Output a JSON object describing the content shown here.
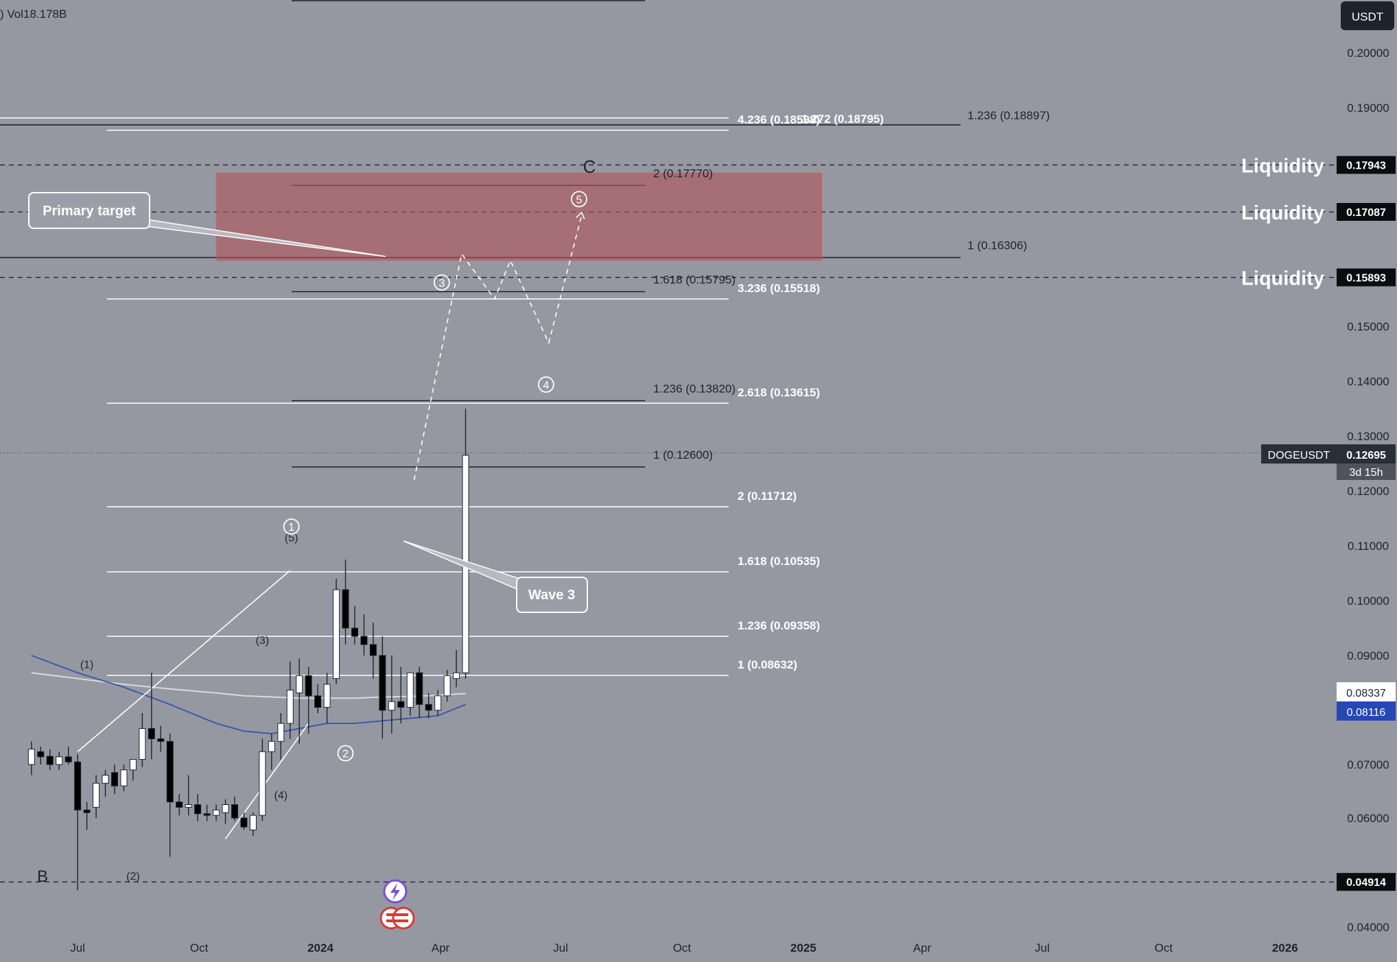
{
  "header": {
    "volume_text": ") Vol18.178B",
    "currency": "USDT"
  },
  "symbol": {
    "name": "DOGEUSDT",
    "price": "0.12695",
    "countdown": "3d 15h"
  },
  "price_tags": {
    "white": "0.08337",
    "blue": "0.08116"
  },
  "colors": {
    "background": "#9598a1",
    "zone": "#b0545b",
    "ma_blue": "#3d5aa8",
    "ma_white": "#d8d9dc",
    "candle_up": "#ffffff",
    "candle_down": "#000000"
  },
  "annotations": {
    "primary_target": "Primary target",
    "wave3": "Wave 3",
    "liquidity": "Liquidity",
    "wave_b": "B",
    "wave_c": "C"
  },
  "chart_data": {
    "type": "candlestick",
    "yaxis": {
      "ticks": [
        "0.20000",
        "0.19000",
        "0.15000",
        "0.14000",
        "0.13000",
        "0.12000",
        "0.11000",
        "0.10000",
        "0.09000",
        "0.07000",
        "0.06000",
        "0.04000"
      ],
      "tick_values": [
        0.2,
        0.19,
        0.15,
        0.14,
        0.13,
        0.12,
        0.11,
        0.1,
        0.09,
        0.07,
        0.06,
        0.04
      ]
    },
    "xaxis": {
      "ticks": [
        "Jul",
        "Oct",
        "2024",
        "Apr",
        "Jul",
        "Oct",
        "2025",
        "Apr",
        "Jul",
        "Oct",
        "2026"
      ],
      "tick_dates": [
        "2023-07",
        "2023-10",
        "2024-01",
        "2024-04",
        "2024-07",
        "2024-10",
        "2025-01",
        "2025-04",
        "2025-07",
        "2025-10",
        "2026-01"
      ]
    },
    "liquidity_levels": [
      {
        "label": "Liquidity",
        "value": "0.17943"
      },
      {
        "label": "Liquidity",
        "value": "0.17087"
      },
      {
        "label": "Liquidity",
        "value": "0.15893"
      },
      {
        "label": "",
        "value": "0.04914"
      }
    ],
    "fib_black_long": [
      {
        "label": "1.272 (0.18795)",
        "price": 0.18795
      },
      {
        "label": "1.236 (0.18897)",
        "price": 0.18897
      },
      {
        "label": "1 (0.16306)",
        "price": 0.16306
      }
    ],
    "fib_black_short": [
      {
        "label": "2 (0.17770)",
        "price": 0.1777
      },
      {
        "label": "1.618 (0.15795)",
        "price": 0.15795
      },
      {
        "label": "1.236 (0.13820)",
        "price": 0.1382
      },
      {
        "label": "1 (0.12600)",
        "price": 0.126
      }
    ],
    "fib_white": [
      {
        "label": "4.236 (0.18598)",
        "price": 0.18598
      },
      {
        "label": "3.236 (0.15518)",
        "price": 0.15518
      },
      {
        "label": "2.618 (0.13615)",
        "price": 0.13615
      },
      {
        "label": "2 (0.11712)",
        "price": 0.11712
      },
      {
        "label": "1.618 (0.10535)",
        "price": 0.10535
      },
      {
        "label": "1.236 (0.09358)",
        "price": 0.09358
      },
      {
        "label": "1 (0.08632)",
        "price": 0.08632
      }
    ],
    "target_zone": {
      "from_date": "2023-10-14",
      "to_date": "2025-01-15",
      "low": 0.162,
      "high": 0.178
    },
    "wave_labels": [
      {
        "text": "(1)",
        "date": "2023-07-08",
        "price": 0.0878
      },
      {
        "text": "(2)",
        "date": "2023-08-12",
        "price": 0.0496
      },
      {
        "text": "(3)",
        "date": "2023-11-18",
        "price": 0.0921
      },
      {
        "text": "(4)",
        "date": "2023-12-02",
        "price": 0.0636
      },
      {
        "text": "(5)",
        "date": "2023-12-10",
        "price": 0.1108
      }
    ],
    "circled_waves": [
      {
        "text": "1",
        "date": "2023-12-10",
        "price": 0.1135
      },
      {
        "text": "2",
        "date": "2024-01-20",
        "price": 0.0722
      },
      {
        "text": "3",
        "date": "2024-04-02",
        "price": 0.158
      },
      {
        "text": "4",
        "date": "2024-06-20",
        "price": 0.1394
      },
      {
        "text": "5",
        "date": "2024-07-15",
        "price": 0.1732
      }
    ],
    "projection_path": [
      {
        "date": "2024-03-12",
        "price": 0.122
      },
      {
        "date": "2024-04-17",
        "price": 0.1632
      },
      {
        "date": "2024-05-12",
        "price": 0.155
      },
      {
        "date": "2024-05-24",
        "price": 0.162
      },
      {
        "date": "2024-06-22",
        "price": 0.147
      },
      {
        "date": "2024-07-17",
        "price": 0.1703
      }
    ],
    "candles": [
      {
        "date": "2023-05-27",
        "o": 0.07,
        "h": 0.0745,
        "l": 0.068,
        "c": 0.073
      },
      {
        "date": "2023-06-03",
        "o": 0.0725,
        "h": 0.0735,
        "l": 0.07,
        "c": 0.0715
      },
      {
        "date": "2023-06-10",
        "o": 0.0716,
        "h": 0.073,
        "l": 0.069,
        "c": 0.07
      },
      {
        "date": "2023-06-17",
        "o": 0.07,
        "h": 0.0725,
        "l": 0.069,
        "c": 0.0715
      },
      {
        "date": "2023-06-24",
        "o": 0.0715,
        "h": 0.0735,
        "l": 0.07,
        "c": 0.0705
      },
      {
        "date": "2023-07-01",
        "o": 0.0705,
        "h": 0.072,
        "l": 0.0475,
        "c": 0.0615
      },
      {
        "date": "2023-07-08",
        "o": 0.0615,
        "h": 0.063,
        "l": 0.058,
        "c": 0.061
      },
      {
        "date": "2023-07-15",
        "o": 0.062,
        "h": 0.068,
        "l": 0.06,
        "c": 0.0665
      },
      {
        "date": "2023-07-22",
        "o": 0.0665,
        "h": 0.069,
        "l": 0.064,
        "c": 0.068
      },
      {
        "date": "2023-07-29",
        "o": 0.0685,
        "h": 0.07,
        "l": 0.0645,
        "c": 0.066
      },
      {
        "date": "2023-08-05",
        "o": 0.066,
        "h": 0.07,
        "l": 0.065,
        "c": 0.069
      },
      {
        "date": "2023-08-12",
        "o": 0.069,
        "h": 0.071,
        "l": 0.067,
        "c": 0.071
      },
      {
        "date": "2023-08-19",
        "o": 0.071,
        "h": 0.08,
        "l": 0.0695,
        "c": 0.077
      },
      {
        "date": "2023-08-26",
        "o": 0.077,
        "h": 0.087,
        "l": 0.071,
        "c": 0.075
      },
      {
        "date": "2023-09-02",
        "o": 0.075,
        "h": 0.0775,
        "l": 0.0725,
        "c": 0.0745
      },
      {
        "date": "2023-09-09",
        "o": 0.0745,
        "h": 0.076,
        "l": 0.0535,
        "c": 0.063
      },
      {
        "date": "2023-09-16",
        "o": 0.063,
        "h": 0.0645,
        "l": 0.0605,
        "c": 0.062
      },
      {
        "date": "2023-09-23",
        "o": 0.062,
        "h": 0.068,
        "l": 0.0605,
        "c": 0.0625
      },
      {
        "date": "2023-09-30",
        "o": 0.0625,
        "h": 0.0645,
        "l": 0.0595,
        "c": 0.0608
      },
      {
        "date": "2023-10-07",
        "o": 0.0608,
        "h": 0.0625,
        "l": 0.0595,
        "c": 0.0605
      },
      {
        "date": "2023-10-14",
        "o": 0.0605,
        "h": 0.0625,
        "l": 0.0595,
        "c": 0.0615
      },
      {
        "date": "2023-10-21",
        "o": 0.061,
        "h": 0.0635,
        "l": 0.059,
        "c": 0.0625
      },
      {
        "date": "2023-10-28",
        "o": 0.0625,
        "h": 0.064,
        "l": 0.0595,
        "c": 0.06
      },
      {
        "date": "2023-11-04",
        "o": 0.06,
        "h": 0.061,
        "l": 0.058,
        "c": 0.0585
      },
      {
        "date": "2023-11-11",
        "o": 0.058,
        "h": 0.061,
        "l": 0.057,
        "c": 0.0605
      },
      {
        "date": "2023-11-18",
        "o": 0.0605,
        "h": 0.075,
        "l": 0.0595,
        "c": 0.0725
      },
      {
        "date": "2023-11-25",
        "o": 0.0725,
        "h": 0.076,
        "l": 0.069,
        "c": 0.0745
      },
      {
        "date": "2023-12-02",
        "o": 0.0745,
        "h": 0.08,
        "l": 0.071,
        "c": 0.078
      },
      {
        "date": "2023-12-09",
        "o": 0.078,
        "h": 0.089,
        "l": 0.075,
        "c": 0.084
      },
      {
        "date": "2023-12-16",
        "o": 0.0835,
        "h": 0.0895,
        "l": 0.074,
        "c": 0.0865
      },
      {
        "date": "2023-12-23",
        "o": 0.0865,
        "h": 0.088,
        "l": 0.076,
        "c": 0.083
      },
      {
        "date": "2023-12-30",
        "o": 0.083,
        "h": 0.085,
        "l": 0.08,
        "c": 0.081
      },
      {
        "date": "2024-01-06",
        "o": 0.081,
        "h": 0.087,
        "l": 0.078,
        "c": 0.085
      },
      {
        "date": "2024-01-13",
        "o": 0.086,
        "h": 0.104,
        "l": 0.085,
        "c": 0.102
      },
      {
        "date": "2024-01-20",
        "o": 0.102,
        "h": 0.1075,
        "l": 0.092,
        "c": 0.095
      },
      {
        "date": "2024-01-27",
        "o": 0.095,
        "h": 0.099,
        "l": 0.092,
        "c": 0.0935
      },
      {
        "date": "2024-02-03",
        "o": 0.0935,
        "h": 0.0975,
        "l": 0.09,
        "c": 0.092
      },
      {
        "date": "2024-02-10",
        "o": 0.092,
        "h": 0.096,
        "l": 0.086,
        "c": 0.09
      },
      {
        "date": "2024-02-17",
        "o": 0.09,
        "h": 0.0935,
        "l": 0.075,
        "c": 0.0805
      },
      {
        "date": "2024-02-24",
        "o": 0.0805,
        "h": 0.09,
        "l": 0.076,
        "c": 0.082
      },
      {
        "date": "2024-03-02",
        "o": 0.082,
        "h": 0.088,
        "l": 0.078,
        "c": 0.081
      },
      {
        "date": "2024-03-09",
        "o": 0.081,
        "h": 0.087,
        "l": 0.0795,
        "c": 0.087
      },
      {
        "date": "2024-03-16",
        "o": 0.087,
        "h": 0.088,
        "l": 0.079,
        "c": 0.0815
      },
      {
        "date": "2024-03-23",
        "o": 0.0815,
        "h": 0.0835,
        "l": 0.079,
        "c": 0.0805
      },
      {
        "date": "2024-03-30",
        "o": 0.0805,
        "h": 0.084,
        "l": 0.0795,
        "c": 0.083
      },
      {
        "date": "2024-04-06",
        "o": 0.083,
        "h": 0.0875,
        "l": 0.082,
        "c": 0.0865
      },
      {
        "date": "2024-04-13",
        "o": 0.086,
        "h": 0.091,
        "l": 0.0845,
        "c": 0.087
      },
      {
        "date": "2024-04-20",
        "o": 0.087,
        "h": 0.135,
        "l": 0.086,
        "c": 0.1265
      }
    ],
    "ma_blue": [
      {
        "date": "2023-05-27",
        "price": 0.09
      },
      {
        "date": "2023-07-01",
        "price": 0.087
      },
      {
        "date": "2023-08-05",
        "price": 0.0845
      },
      {
        "date": "2023-09-09",
        "price": 0.0815
      },
      {
        "date": "2023-10-14",
        "price": 0.078
      },
      {
        "date": "2023-11-04",
        "price": 0.0765
      },
      {
        "date": "2023-11-25",
        "price": 0.076
      },
      {
        "date": "2023-12-16",
        "price": 0.077
      },
      {
        "date": "2024-01-06",
        "price": 0.078
      },
      {
        "date": "2024-01-27",
        "price": 0.078
      },
      {
        "date": "2024-02-17",
        "price": 0.0785
      },
      {
        "date": "2024-03-09",
        "price": 0.079
      },
      {
        "date": "2024-03-30",
        "price": 0.0795
      },
      {
        "date": "2024-04-20",
        "price": 0.0815
      }
    ],
    "ma_white": [
      {
        "date": "2023-05-27",
        "price": 0.087
      },
      {
        "date": "2023-07-01",
        "price": 0.086
      },
      {
        "date": "2023-08-05",
        "price": 0.085
      },
      {
        "date": "2023-09-09",
        "price": 0.0842
      },
      {
        "date": "2023-10-14",
        "price": 0.0835
      },
      {
        "date": "2023-11-04",
        "price": 0.083
      },
      {
        "date": "2023-11-25",
        "price": 0.0828
      },
      {
        "date": "2023-12-16",
        "price": 0.0826
      },
      {
        "date": "2024-01-06",
        "price": 0.0826
      },
      {
        "date": "2024-01-27",
        "price": 0.0826
      },
      {
        "date": "2024-02-17",
        "price": 0.0828
      },
      {
        "date": "2024-03-09",
        "price": 0.0829
      },
      {
        "date": "2024-03-30",
        "price": 0.0831
      },
      {
        "date": "2024-04-20",
        "price": 0.0834
      }
    ],
    "triangle_lines": [
      [
        {
          "date": "2023-07-01",
          "price": 0.0725
        },
        {
          "date": "2023-12-09",
          "price": 0.1055
        }
      ],
      [
        {
          "date": "2023-10-21",
          "price": 0.0565
        },
        {
          "date": "2023-12-23",
          "price": 0.078
        }
      ]
    ],
    "current_price": 0.12695,
    "last_close": 0.08337,
    "last_ma": 0.08116
  }
}
